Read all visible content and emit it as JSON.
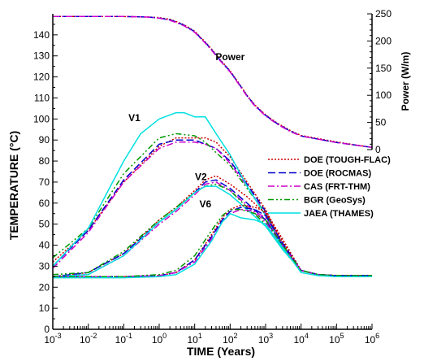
{
  "chart_data": {
    "type": "line",
    "xlabel": "TIME (Years)",
    "ylabel": "TEMPERATURE (°C)",
    "y2label": "Power (W/m)",
    "x_scale": "log",
    "xlim": [
      0.001,
      1000000
    ],
    "ylim": [
      0,
      150
    ],
    "y2lim": [
      0,
      250
    ],
    "x_ticks": [
      {
        "base": "10",
        "exp": "-3",
        "value": 0.001
      },
      {
        "base": "10",
        "exp": "-2",
        "value": 0.01
      },
      {
        "base": "10",
        "exp": "-1",
        "value": 0.1
      },
      {
        "base": "10",
        "exp": "0",
        "value": 1
      },
      {
        "base": "10",
        "exp": "1",
        "value": 10
      },
      {
        "base": "10",
        "exp": "2",
        "value": 100
      },
      {
        "base": "10",
        "exp": "3",
        "value": 1000
      },
      {
        "base": "10",
        "exp": "4",
        "value": 10000
      },
      {
        "base": "10",
        "exp": "5",
        "value": 100000
      },
      {
        "base": "10",
        "exp": "6",
        "value": 1000000
      }
    ],
    "y_ticks": [
      "0",
      "10",
      "20",
      "30",
      "40",
      "50",
      "60",
      "70",
      "80",
      "90",
      "100",
      "110",
      "120",
      "130",
      "140"
    ],
    "y2_ticks": [
      "0",
      "50",
      "100",
      "150",
      "200",
      "250"
    ],
    "annotations": [
      {
        "text": "Power",
        "x": 100,
        "y": 128
      },
      {
        "text": "V1",
        "x": 0.2,
        "y": 99
      },
      {
        "text": "V2",
        "x": 15,
        "y": 71
      },
      {
        "text": "V6",
        "x": 20,
        "y": 58
      }
    ],
    "legend": {
      "position": "right",
      "entries": [
        "DOE (TOUGH-FLAC)",
        "DOE (ROCMAS)",
        "CAS (FRT-THM)",
        "BGR (GeoSys)",
        "JAEA (THAMES)"
      ]
    },
    "series_style": [
      {
        "color": "#cc0000",
        "dash": "2,2"
      },
      {
        "color": "#0000cc",
        "dash": "9,4"
      },
      {
        "color": "#cc00cc",
        "dash": "8,3,2,3"
      },
      {
        "color": "#009900",
        "dash": "7,3,2,3,2,3"
      },
      {
        "color": "#00e0e0",
        "dash": ""
      }
    ],
    "series": [
      {
        "name": "DOE (TOUGH-FLAC)",
        "group": "V1",
        "x": [
          0.001,
          0.01,
          0.1,
          1,
          3,
          10,
          20,
          40,
          100,
          300,
          1000,
          3000,
          10000,
          30000,
          100000,
          1000000
        ],
        "y": [
          32,
          47,
          70,
          87,
          91,
          91,
          91,
          89,
          82,
          70,
          57,
          41,
          28,
          26,
          25.5,
          25.5
        ]
      },
      {
        "name": "DOE (ROCMAS)",
        "group": "V1",
        "x": [
          0.001,
          0.01,
          0.1,
          1,
          3,
          10,
          20,
          40,
          100,
          300,
          1000,
          3000,
          10000,
          30000,
          100000,
          1000000
        ],
        "y": [
          30,
          47,
          71,
          88,
          90,
          90,
          88,
          86,
          80,
          69,
          56,
          40,
          28,
          26,
          25.5,
          25.5
        ]
      },
      {
        "name": "CAS (FRT-THM)",
        "group": "V1",
        "x": [
          0.001,
          0.01,
          0.1,
          1,
          3,
          10,
          20,
          40,
          100,
          300,
          1000,
          3000,
          10000,
          30000,
          100000,
          1000000
        ],
        "y": [
          29,
          46,
          70,
          86,
          89,
          89,
          88,
          86,
          79,
          68,
          55,
          40,
          28,
          26,
          25,
          25
        ]
      },
      {
        "name": "BGR (GeoSys)",
        "group": "V1",
        "x": [
          0.001,
          0.01,
          0.1,
          1,
          3,
          10,
          20,
          40,
          100,
          300,
          1000,
          3000,
          10000,
          30000,
          100000,
          1000000
        ],
        "y": [
          34,
          48,
          74,
          91,
          93,
          92,
          89,
          84,
          78,
          67,
          55,
          40,
          28,
          26,
          25.5,
          25.5
        ]
      },
      {
        "name": "JAEA (THAMES)",
        "group": "V1",
        "x": [
          0.001,
          0.01,
          0.1,
          0.3,
          1,
          3,
          5,
          10,
          20,
          40,
          100,
          300,
          1000,
          3000,
          10000,
          30000,
          100000,
          1000000
        ],
        "y": [
          30,
          48,
          80,
          93,
          100,
          103,
          103,
          101,
          101,
          93,
          83,
          68,
          54,
          39,
          28,
          26,
          25,
          25
        ]
      },
      {
        "name": "DOE (TOUGH-FLAC)",
        "group": "V2",
        "x": [
          0.001,
          0.01,
          0.1,
          1,
          3,
          10,
          20,
          40,
          100,
          300,
          1000,
          3000,
          10000,
          30000,
          100000,
          1000000
        ],
        "y": [
          25,
          27,
          36,
          52,
          58,
          66,
          71,
          73,
          69,
          63,
          55,
          42,
          28,
          26,
          25.5,
          25.5
        ]
      },
      {
        "name": "DOE (ROCMAS)",
        "group": "V2",
        "x": [
          0.001,
          0.01,
          0.1,
          1,
          3,
          10,
          20,
          40,
          100,
          300,
          1000,
          3000,
          10000,
          30000,
          100000,
          1000000
        ],
        "y": [
          25,
          27,
          36,
          51,
          57,
          65,
          70,
          71,
          67,
          60,
          52,
          40,
          28,
          26,
          25.5,
          25.5
        ]
      },
      {
        "name": "CAS (FRT-THM)",
        "group": "V2",
        "x": [
          0.001,
          0.01,
          0.1,
          1,
          3,
          10,
          20,
          40,
          100,
          300,
          1000,
          3000,
          10000,
          30000,
          100000,
          1000000
        ],
        "y": [
          25,
          26,
          35,
          50,
          56,
          64,
          69,
          70,
          66,
          59,
          51,
          39,
          28,
          26,
          25,
          25
        ]
      },
      {
        "name": "BGR (GeoSys)",
        "group": "V2",
        "x": [
          0.001,
          0.01,
          0.1,
          1,
          3,
          10,
          20,
          40,
          100,
          300,
          1000,
          3000,
          10000,
          30000,
          100000,
          1000000
        ],
        "y": [
          26,
          27,
          37,
          52,
          58,
          65,
          68,
          69,
          66,
          58,
          50,
          38,
          28,
          26,
          25.5,
          25.5
        ]
      },
      {
        "name": "JAEA (THAMES)",
        "group": "V2",
        "x": [
          0.001,
          0.01,
          0.1,
          1,
          3,
          10,
          20,
          40,
          100,
          300,
          1000,
          3000,
          10000,
          30000,
          100000,
          1000000
        ],
        "y": [
          25,
          26,
          35,
          51,
          57,
          65,
          68,
          68,
          64,
          57,
          49,
          38,
          28,
          26,
          25,
          25
        ]
      },
      {
        "name": "DOE (TOUGH-FLAC)",
        "group": "V6",
        "x": [
          0.001,
          0.1,
          1,
          3,
          10,
          30,
          60,
          100,
          200,
          500,
          1000,
          3000,
          10000,
          30000,
          100000,
          1000000
        ],
        "y": [
          25,
          25,
          25.5,
          27,
          33,
          45,
          53,
          57,
          59,
          58,
          56,
          43,
          28,
          26,
          25.5,
          25.5
        ]
      },
      {
        "name": "DOE (ROCMAS)",
        "group": "V6",
        "x": [
          0.001,
          0.1,
          1,
          3,
          10,
          30,
          60,
          100,
          200,
          500,
          1000,
          3000,
          10000,
          30000,
          100000,
          1000000
        ],
        "y": [
          25,
          25,
          25.5,
          27,
          33,
          44,
          52,
          56,
          58,
          57,
          54,
          41,
          28,
          26,
          25.5,
          25.5
        ]
      },
      {
        "name": "CAS (FRT-THM)",
        "group": "V6",
        "x": [
          0.001,
          0.1,
          1,
          3,
          10,
          30,
          60,
          100,
          200,
          500,
          1000,
          3000,
          10000,
          30000,
          100000,
          1000000
        ],
        "y": [
          25,
          25,
          25.5,
          27,
          32,
          43,
          51,
          55,
          57,
          56,
          53,
          40,
          28,
          26,
          25,
          25
        ]
      },
      {
        "name": "BGR (GeoSys)",
        "group": "V6",
        "x": [
          0.001,
          0.1,
          1,
          3,
          10,
          30,
          60,
          100,
          200,
          500,
          1000,
          3000,
          10000,
          30000,
          100000,
          1000000
        ],
        "y": [
          25,
          25,
          26,
          28,
          35,
          47,
          54,
          57,
          57,
          55,
          52,
          40,
          28,
          26,
          25.5,
          25.5
        ]
      },
      {
        "name": "JAEA (THAMES)",
        "group": "V6",
        "x": [
          0.001,
          0.1,
          1,
          3,
          10,
          30,
          60,
          100,
          200,
          500,
          1000,
          3000,
          10000,
          30000,
          100000,
          1000000
        ],
        "y": [
          24.5,
          24.5,
          25,
          26,
          31,
          42,
          51,
          55,
          53,
          52,
          50,
          39,
          27,
          25.5,
          25,
          25
        ]
      },
      {
        "name": "DOE (TOUGH-FLAC)",
        "group": "Power",
        "axis": "right",
        "x": [
          0.001,
          0.01,
          0.1,
          0.5,
          1,
          2,
          3,
          5,
          10,
          15,
          20,
          30,
          50,
          100,
          200,
          300,
          500,
          1000,
          2000,
          5000,
          10000,
          100000,
          1000000
        ],
        "y": [
          245,
          245,
          245,
          244,
          243,
          240,
          236,
          230,
          218,
          206,
          198,
          185,
          167,
          145,
          117,
          100,
          82,
          64,
          50,
          35,
          26,
          14,
          4
        ]
      },
      {
        "name": "DOE (ROCMAS)",
        "group": "Power",
        "axis": "right",
        "x": [
          0.001,
          0.01,
          0.1,
          0.5,
          1,
          2,
          3,
          5,
          10,
          15,
          20,
          30,
          50,
          100,
          200,
          300,
          500,
          1000,
          2000,
          5000,
          10000,
          100000,
          1000000
        ],
        "y": [
          245,
          245,
          245,
          244,
          242,
          239,
          235,
          229,
          217,
          205,
          197,
          184,
          166,
          144,
          116,
          99,
          81,
          63,
          49,
          34,
          25,
          13,
          4
        ]
      },
      {
        "name": "CAS (FRT-THM)",
        "group": "Power",
        "axis": "right",
        "x": [
          0.001,
          0.01,
          0.1,
          0.5,
          1,
          2,
          3,
          5,
          10,
          15,
          20,
          30,
          50,
          100,
          200,
          300,
          500,
          1000,
          2000,
          5000,
          10000,
          100000,
          1000000
        ],
        "y": [
          245,
          245,
          245,
          244,
          242,
          238,
          234,
          228,
          216,
          204,
          196,
          183,
          165,
          143,
          115,
          98,
          80,
          62,
          48,
          33,
          25,
          13,
          4
        ]
      }
    ]
  }
}
